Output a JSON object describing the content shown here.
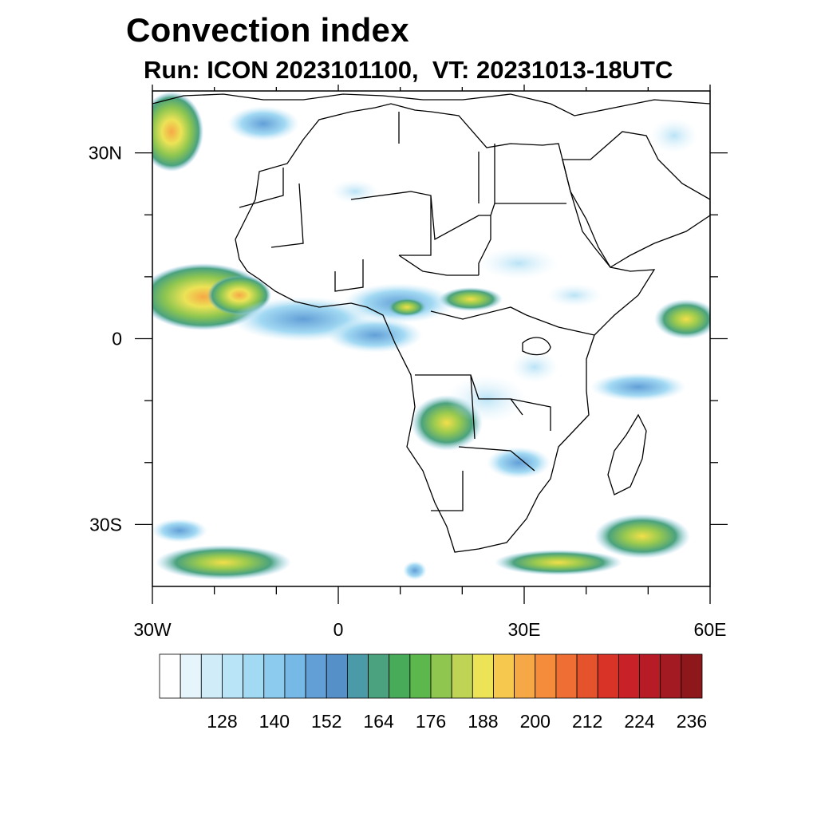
{
  "title": "Convection index",
  "subtitle": "Run: ICON 2023101100,  VT: 20231013-18UTC",
  "map": {
    "extent": {
      "lon": [
        -30,
        60
      ],
      "lat": [
        -40,
        40
      ]
    },
    "lon_ticks": [
      {
        "lon": -30,
        "label": "30W"
      },
      {
        "lon": 0,
        "label": "0"
      },
      {
        "lon": 30,
        "label": "30E"
      },
      {
        "lon": 60,
        "label": "60E"
      }
    ],
    "lat_ticks": [
      {
        "lat": 30,
        "label": "30N"
      },
      {
        "lat": 0,
        "label": "0"
      },
      {
        "lat": -30,
        "label": "30S"
      }
    ],
    "minor_lon_ticks": [
      -20,
      -10,
      10,
      20,
      40,
      50
    ],
    "minor_lat_ticks": [
      20,
      10,
      -10,
      -20
    ]
  },
  "colorbar": {
    "colors": [
      "#ffffff",
      "#e6f5fc",
      "#d0ecf9",
      "#b9e3f6",
      "#a2d9f3",
      "#8ccbee",
      "#76b8e6",
      "#629fd7",
      "#5590c8",
      "#4a9aa8",
      "#4aa27e",
      "#48ab5a",
      "#5cb84c",
      "#8ec650",
      "#bfd454",
      "#ece356",
      "#f7c84e",
      "#f6a846",
      "#f48c3c",
      "#ee6e33",
      "#e4532c",
      "#d93328",
      "#c92128",
      "#b71b25",
      "#a31a22",
      "#8e171b"
    ],
    "labels": [
      "128",
      "140",
      "152",
      "164",
      "176",
      "188",
      "200",
      "212",
      "224",
      "236"
    ]
  }
}
